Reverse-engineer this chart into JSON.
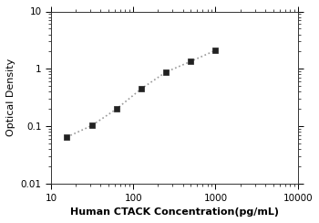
{
  "x": [
    15.6,
    31.25,
    62.5,
    125,
    250,
    500,
    1000
  ],
  "y": [
    0.065,
    0.103,
    0.2,
    0.45,
    0.88,
    1.35,
    2.1
  ],
  "marker": "s",
  "marker_color": "#222222",
  "marker_size": 5,
  "line_color": "#999999",
  "line_style": ":",
  "line_width": 1.2,
  "xlabel": "Human CTACK Concentration(pg/mL)",
  "ylabel": "Optical Density",
  "xlim": [
    10,
    10000
  ],
  "ylim": [
    0.01,
    10
  ],
  "xticks": [
    10,
    100,
    1000,
    10000
  ],
  "yticks": [
    0.01,
    0.1,
    1,
    10
  ],
  "xlabel_fontsize": 8,
  "ylabel_fontsize": 8,
  "tick_fontsize": 7.5,
  "xlabel_bold": true,
  "background_color": "#ffffff"
}
